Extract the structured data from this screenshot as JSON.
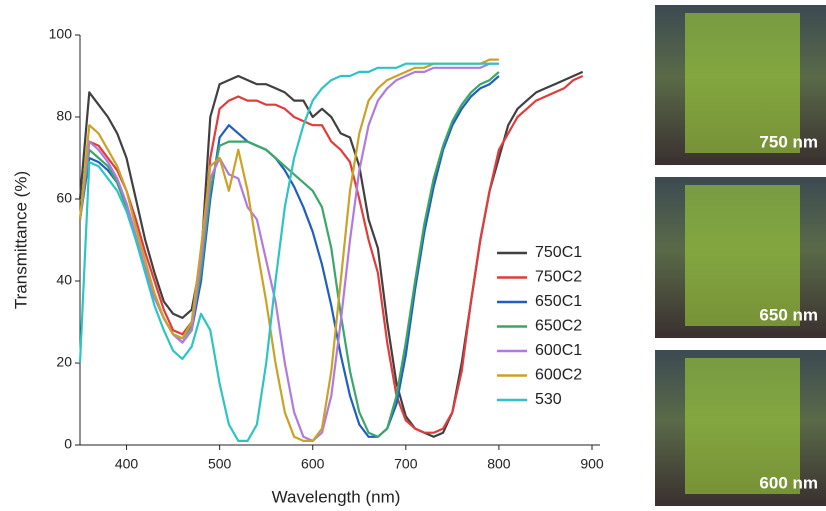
{
  "chart_data": {
    "type": "line",
    "xlabel": "Wavelength (nm)",
    "ylabel": "Transmittance (%)",
    "xlim": [
      350,
      900
    ],
    "ylim": [
      0,
      100
    ],
    "xticks": [
      400,
      500,
      600,
      700,
      800,
      900
    ],
    "yticks": [
      0,
      20,
      40,
      60,
      80,
      100
    ],
    "x": [
      350,
      360,
      370,
      380,
      390,
      400,
      410,
      420,
      430,
      440,
      450,
      460,
      470,
      480,
      490,
      500,
      510,
      520,
      530,
      540,
      550,
      560,
      570,
      580,
      590,
      600,
      610,
      620,
      630,
      640,
      650,
      660,
      670,
      680,
      690,
      700,
      710,
      720,
      730,
      740,
      750,
      760,
      770,
      780,
      790,
      800,
      810,
      820,
      830,
      840,
      850,
      860,
      870,
      880,
      890
    ],
    "series": [
      {
        "name": "750C1",
        "color": "#404040",
        "values": [
          60,
          86,
          83,
          80,
          76,
          70,
          60,
          50,
          42,
          35,
          32,
          31,
          33,
          45,
          80,
          88,
          89,
          90,
          89,
          88,
          88,
          87,
          86,
          84,
          84,
          80,
          82,
          80,
          76,
          75,
          68,
          55,
          48,
          30,
          15,
          7,
          4,
          3,
          2,
          3,
          8,
          20,
          35,
          50,
          62,
          70,
          78,
          82,
          84,
          86,
          87,
          88,
          89,
          90,
          91
        ]
      },
      {
        "name": "750C2",
        "color": "#e03c3c",
        "values": [
          55,
          74,
          73,
          70,
          67,
          62,
          55,
          47,
          40,
          33,
          28,
          27,
          30,
          40,
          70,
          82,
          84,
          85,
          84,
          84,
          83,
          83,
          82,
          80,
          79,
          78,
          78,
          74,
          72,
          69,
          60,
          50,
          42,
          25,
          12,
          6,
          4,
          3,
          3,
          4,
          8,
          18,
          35,
          50,
          62,
          72,
          76,
          80,
          82,
          84,
          85,
          86,
          87,
          89,
          90
        ]
      },
      {
        "name": "650C1",
        "color": "#1f5fbf",
        "values": [
          55,
          70,
          69,
          67,
          64,
          58,
          50,
          43,
          36,
          31,
          27,
          25,
          28,
          40,
          60,
          75,
          78,
          76,
          74,
          73,
          72,
          70,
          67,
          63,
          58,
          52,
          44,
          34,
          22,
          12,
          5,
          2,
          2,
          4,
          10,
          22,
          38,
          52,
          63,
          72,
          78,
          82,
          85,
          87,
          88,
          90,
          null,
          null,
          null,
          null,
          null,
          null,
          null,
          null,
          null
        ]
      },
      {
        "name": "650C2",
        "color": "#3aa66a",
        "values": [
          55,
          72,
          70,
          68,
          64,
          58,
          50,
          43,
          36,
          31,
          27,
          26,
          29,
          42,
          62,
          73,
          74,
          74,
          74,
          73,
          72,
          70,
          68,
          66,
          64,
          62,
          58,
          48,
          32,
          18,
          8,
          3,
          2,
          4,
          12,
          25,
          40,
          54,
          65,
          73,
          79,
          83,
          86,
          88,
          89,
          91,
          null,
          null,
          null,
          null,
          null,
          null,
          null,
          null,
          null
        ]
      },
      {
        "name": "600C1",
        "color": "#b07be0",
        "values": [
          55,
          74,
          72,
          69,
          65,
          59,
          51,
          43,
          36,
          31,
          27,
          25,
          28,
          45,
          65,
          70,
          66,
          65,
          58,
          55,
          45,
          35,
          20,
          8,
          2,
          1,
          3,
          12,
          30,
          50,
          67,
          78,
          84,
          87,
          89,
          90,
          91,
          91,
          92,
          92,
          92,
          92,
          92,
          92,
          93,
          93,
          null,
          null,
          null,
          null,
          null,
          null,
          null,
          null,
          null
        ]
      },
      {
        "name": "600C2",
        "color": "#c9a227",
        "values": [
          55,
          78,
          76,
          72,
          68,
          62,
          53,
          45,
          37,
          31,
          27,
          26,
          30,
          48,
          68,
          70,
          62,
          72,
          62,
          48,
          35,
          20,
          8,
          2,
          1,
          1,
          4,
          18,
          40,
          62,
          76,
          84,
          87,
          89,
          90,
          91,
          92,
          92,
          93,
          93,
          93,
          93,
          93,
          93,
          94,
          94,
          null,
          null,
          null,
          null,
          null,
          null,
          null,
          null,
          null
        ]
      },
      {
        "name": "530",
        "color": "#2ec4c4",
        "values": [
          20,
          69,
          68,
          65,
          62,
          57,
          50,
          42,
          34,
          28,
          23,
          21,
          24,
          32,
          28,
          15,
          5,
          1,
          1,
          5,
          20,
          40,
          58,
          70,
          78,
          84,
          87,
          89,
          90,
          90,
          91,
          91,
          92,
          92,
          92,
          93,
          93,
          93,
          93,
          93,
          93,
          93,
          93,
          93,
          93,
          93,
          null,
          null,
          null,
          null,
          null,
          null,
          null,
          null,
          null
        ]
      }
    ]
  },
  "photos": [
    {
      "label": "750 nm"
    },
    {
      "label": "650 nm"
    },
    {
      "label": "600 nm"
    }
  ]
}
